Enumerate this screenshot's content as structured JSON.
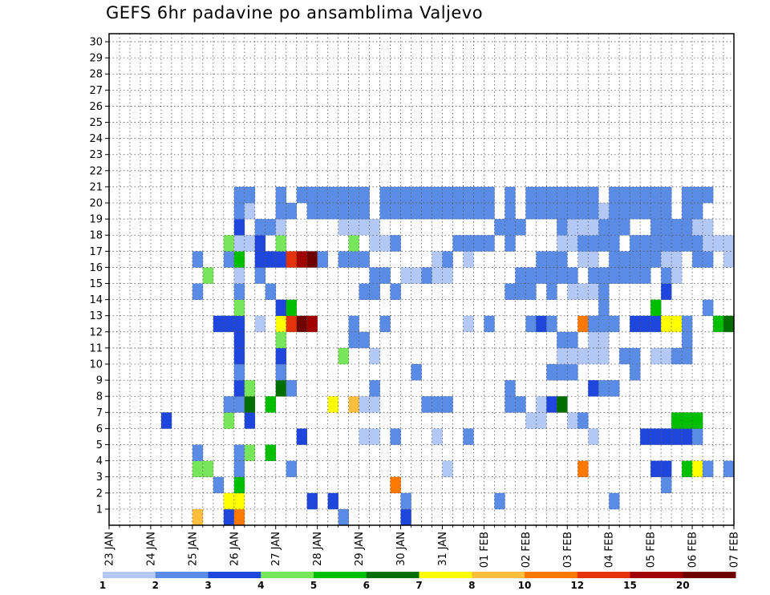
{
  "chart_data": {
    "type": "heatmap",
    "title": "GEFS 6hr padavine po ansamblima Valjevo",
    "xlabel": "",
    "ylabel": "",
    "x_ticks": [
      "23 JAN",
      "24 JAN",
      "25 JAN",
      "26 JAN",
      "27 JAN",
      "28 JAN",
      "29 JAN",
      "30 JAN",
      "31 JAN",
      "01 FEB",
      "02 FEB",
      "03 FEB",
      "04 FEB",
      "05 FEB",
      "06 FEB",
      "07 FEB"
    ],
    "y_ticks": [
      "1",
      "2",
      "3",
      "4",
      "5",
      "6",
      "7",
      "8",
      "9",
      "10",
      "11",
      "12",
      "13",
      "14",
      "15",
      "16",
      "17",
      "18",
      "19",
      "20",
      "21",
      "22",
      "23",
      "24",
      "25",
      "26",
      "27",
      "28",
      "29",
      "30"
    ],
    "members": 30,
    "steps": 60,
    "steps_per_day": 4,
    "grid": true,
    "legend_position": "bottom",
    "legend_labels": [
      "1",
      "2",
      "3",
      "4",
      "5",
      "6",
      "7",
      "8",
      "10",
      "12",
      "15",
      "20"
    ],
    "legend_colors": [
      "#b4c8f5",
      "#5a8ce6",
      "#1e46dc",
      "#78e65a",
      "#00be00",
      "#006e00",
      "#ffff00",
      "#ffbe3c",
      "#ff7800",
      "#e6320a",
      "#a00000",
      "#6e0000"
    ],
    "cells": [
      [
        8,
        0,
        7
      ],
      [
        11,
        0,
        2
      ],
      [
        12,
        0,
        8
      ],
      [
        22,
        0,
        1
      ],
      [
        28,
        0,
        2
      ],
      [
        11,
        1,
        6
      ],
      [
        12,
        1,
        6
      ],
      [
        19,
        1,
        2
      ],
      [
        21,
        1,
        2
      ],
      [
        28,
        1,
        1
      ],
      [
        37,
        1,
        1
      ],
      [
        48,
        1,
        1
      ],
      [
        10,
        2,
        1
      ],
      [
        12,
        2,
        4
      ],
      [
        27,
        2,
        8
      ],
      [
        53,
        2,
        1
      ],
      [
        8,
        3,
        3
      ],
      [
        9,
        3,
        3
      ],
      [
        12,
        3,
        1
      ],
      [
        17,
        3,
        1
      ],
      [
        32,
        3,
        0
      ],
      [
        45,
        3,
        8
      ],
      [
        52,
        3,
        2
      ],
      [
        53,
        3,
        2
      ],
      [
        55,
        3,
        4
      ],
      [
        56,
        3,
        6
      ],
      [
        57,
        3,
        1
      ],
      [
        59,
        3,
        1
      ],
      [
        8,
        4,
        1
      ],
      [
        12,
        4,
        1
      ],
      [
        15,
        4,
        4
      ],
      [
        13,
        4,
        3
      ],
      [
        18,
        5,
        2
      ],
      [
        24,
        5,
        0
      ],
      [
        25,
        5,
        0
      ],
      [
        27,
        5,
        1
      ],
      [
        31,
        5,
        0
      ],
      [
        34,
        5,
        1
      ],
      [
        46,
        5,
        0
      ],
      [
        51,
        5,
        2
      ],
      [
        52,
        5,
        2
      ],
      [
        53,
        5,
        2
      ],
      [
        54,
        5,
        2
      ],
      [
        55,
        5,
        2
      ],
      [
        56,
        5,
        1
      ],
      [
        5,
        6,
        2
      ],
      [
        11,
        6,
        3
      ],
      [
        13,
        6,
        2
      ],
      [
        40,
        6,
        0
      ],
      [
        41,
        6,
        0
      ],
      [
        44,
        6,
        0
      ],
      [
        45,
        6,
        1
      ],
      [
        54,
        6,
        4
      ],
      [
        55,
        6,
        4
      ],
      [
        56,
        6,
        4
      ],
      [
        11,
        7,
        1
      ],
      [
        12,
        7,
        1
      ],
      [
        13,
        7,
        5
      ],
      [
        15,
        7,
        4
      ],
      [
        21,
        7,
        6
      ],
      [
        23,
        7,
        7
      ],
      [
        24,
        7,
        0
      ],
      [
        25,
        7,
        0
      ],
      [
        30,
        7,
        1
      ],
      [
        31,
        7,
        1
      ],
      [
        32,
        7,
        1
      ],
      [
        38,
        7,
        1
      ],
      [
        39,
        7,
        1
      ],
      [
        41,
        7,
        0
      ],
      [
        42,
        7,
        2
      ],
      [
        43,
        7,
        5
      ],
      [
        12,
        8,
        2
      ],
      [
        13,
        8,
        3
      ],
      [
        16,
        8,
        5
      ],
      [
        17,
        8,
        1
      ],
      [
        25,
        8,
        1
      ],
      [
        38,
        8,
        1
      ],
      [
        46,
        8,
        2
      ],
      [
        47,
        8,
        1
      ],
      [
        48,
        8,
        1
      ],
      [
        12,
        9,
        1
      ],
      [
        16,
        9,
        1
      ],
      [
        29,
        9,
        1
      ],
      [
        42,
        9,
        1
      ],
      [
        43,
        9,
        1
      ],
      [
        44,
        9,
        1
      ],
      [
        50,
        9,
        1
      ],
      [
        12,
        10,
        2
      ],
      [
        16,
        10,
        2
      ],
      [
        22,
        10,
        3
      ],
      [
        25,
        10,
        0
      ],
      [
        43,
        10,
        0
      ],
      [
        44,
        10,
        0
      ],
      [
        45,
        10,
        0
      ],
      [
        46,
        10,
        0
      ],
      [
        47,
        10,
        0
      ],
      [
        49,
        10,
        1
      ],
      [
        50,
        10,
        1
      ],
      [
        52,
        10,
        0
      ],
      [
        53,
        10,
        0
      ],
      [
        54,
        10,
        1
      ],
      [
        55,
        10,
        1
      ],
      [
        12,
        11,
        2
      ],
      [
        16,
        11,
        3
      ],
      [
        23,
        11,
        1
      ],
      [
        24,
        11,
        1
      ],
      [
        43,
        11,
        1
      ],
      [
        44,
        11,
        1
      ],
      [
        46,
        11,
        0
      ],
      [
        47,
        11,
        0
      ],
      [
        55,
        11,
        1
      ],
      [
        10,
        12,
        2
      ],
      [
        11,
        12,
        2
      ],
      [
        12,
        12,
        2
      ],
      [
        14,
        12,
        0
      ],
      [
        16,
        12,
        6
      ],
      [
        17,
        12,
        9
      ],
      [
        18,
        12,
        11
      ],
      [
        19,
        12,
        10
      ],
      [
        23,
        12,
        1
      ],
      [
        26,
        12,
        1
      ],
      [
        34,
        12,
        0
      ],
      [
        36,
        12,
        1
      ],
      [
        40,
        12,
        1
      ],
      [
        41,
        12,
        2
      ],
      [
        42,
        12,
        1
      ],
      [
        45,
        12,
        8
      ],
      [
        46,
        12,
        1
      ],
      [
        47,
        12,
        1
      ],
      [
        48,
        12,
        1
      ],
      [
        50,
        12,
        2
      ],
      [
        51,
        12,
        2
      ],
      [
        52,
        12,
        2
      ],
      [
        53,
        12,
        6
      ],
      [
        54,
        12,
        6
      ],
      [
        55,
        12,
        1
      ],
      [
        58,
        12,
        4
      ],
      [
        59,
        12,
        5
      ],
      [
        12,
        13,
        3
      ],
      [
        16,
        13,
        2
      ],
      [
        17,
        13,
        4
      ],
      [
        47,
        13,
        1
      ],
      [
        52,
        13,
        4
      ],
      [
        57,
        13,
        1
      ],
      [
        8,
        14,
        1
      ],
      [
        12,
        14,
        1
      ],
      [
        15,
        14,
        1
      ],
      [
        24,
        14,
        1
      ],
      [
        25,
        14,
        1
      ],
      [
        27,
        14,
        1
      ],
      [
        38,
        14,
        1
      ],
      [
        39,
        14,
        1
      ],
      [
        40,
        14,
        1
      ],
      [
        42,
        14,
        1
      ],
      [
        44,
        14,
        0
      ],
      [
        45,
        14,
        0
      ],
      [
        46,
        14,
        0
      ],
      [
        47,
        14,
        1
      ],
      [
        53,
        14,
        2
      ],
      [
        9,
        15,
        3
      ],
      [
        12,
        15,
        0
      ],
      [
        14,
        15,
        1
      ],
      [
        25,
        15,
        1
      ],
      [
        26,
        15,
        1
      ],
      [
        28,
        15,
        0
      ],
      [
        29,
        15,
        0
      ],
      [
        30,
        15,
        1
      ],
      [
        31,
        15,
        0
      ],
      [
        32,
        15,
        0
      ],
      [
        39,
        15,
        1
      ],
      [
        40,
        15,
        1
      ],
      [
        41,
        15,
        1
      ],
      [
        42,
        15,
        1
      ],
      [
        43,
        15,
        1
      ],
      [
        44,
        15,
        1
      ],
      [
        46,
        15,
        1
      ],
      [
        47,
        15,
        1
      ],
      [
        48,
        15,
        1
      ],
      [
        49,
        15,
        1
      ],
      [
        50,
        15,
        1
      ],
      [
        51,
        15,
        1
      ],
      [
        53,
        15,
        1
      ],
      [
        54,
        15,
        0
      ],
      [
        8,
        16,
        1
      ],
      [
        11,
        16,
        1
      ],
      [
        12,
        16,
        4
      ],
      [
        14,
        16,
        2
      ],
      [
        15,
        16,
        2
      ],
      [
        16,
        16,
        2
      ],
      [
        17,
        16,
        9
      ],
      [
        18,
        16,
        10
      ],
      [
        19,
        16,
        11
      ],
      [
        20,
        16,
        1
      ],
      [
        22,
        16,
        1
      ],
      [
        23,
        16,
        1
      ],
      [
        24,
        16,
        1
      ],
      [
        31,
        16,
        0
      ],
      [
        32,
        16,
        1
      ],
      [
        34,
        16,
        0
      ],
      [
        41,
        16,
        1
      ],
      [
        42,
        16,
        1
      ],
      [
        43,
        16,
        1
      ],
      [
        45,
        16,
        0
      ],
      [
        46,
        16,
        0
      ],
      [
        48,
        16,
        1
      ],
      [
        49,
        16,
        1
      ],
      [
        50,
        16,
        1
      ],
      [
        51,
        16,
        1
      ],
      [
        52,
        16,
        1
      ],
      [
        53,
        16,
        0
      ],
      [
        54,
        16,
        0
      ],
      [
        56,
        16,
        1
      ],
      [
        57,
        16,
        1
      ],
      [
        59,
        16,
        0
      ],
      [
        11,
        17,
        3
      ],
      [
        12,
        17,
        0
      ],
      [
        13,
        17,
        0
      ],
      [
        14,
        17,
        2
      ],
      [
        16,
        17,
        3
      ],
      [
        23,
        17,
        3
      ],
      [
        25,
        17,
        0
      ],
      [
        26,
        17,
        0
      ],
      [
        27,
        17,
        1
      ],
      [
        33,
        17,
        1
      ],
      [
        34,
        17,
        1
      ],
      [
        35,
        17,
        1
      ],
      [
        36,
        17,
        1
      ],
      [
        38,
        17,
        1
      ],
      [
        43,
        17,
        0
      ],
      [
        44,
        17,
        0
      ],
      [
        45,
        17,
        1
      ],
      [
        46,
        17,
        1
      ],
      [
        47,
        17,
        1
      ],
      [
        48,
        17,
        1
      ],
      [
        50,
        17,
        1
      ],
      [
        51,
        17,
        1
      ],
      [
        52,
        17,
        1
      ],
      [
        53,
        17,
        1
      ],
      [
        54,
        17,
        1
      ],
      [
        55,
        17,
        1
      ],
      [
        56,
        17,
        1
      ],
      [
        57,
        17,
        0
      ],
      [
        58,
        17,
        0
      ],
      [
        59,
        17,
        0
      ],
      [
        12,
        18,
        2
      ],
      [
        14,
        18,
        1
      ],
      [
        15,
        18,
        1
      ],
      [
        16,
        18,
        0
      ],
      [
        22,
        18,
        0
      ],
      [
        23,
        18,
        0
      ],
      [
        24,
        18,
        0
      ],
      [
        25,
        18,
        0
      ],
      [
        37,
        18,
        1
      ],
      [
        38,
        18,
        1
      ],
      [
        39,
        18,
        1
      ],
      [
        43,
        18,
        1
      ],
      [
        44,
        18,
        0
      ],
      [
        45,
        18,
        0
      ],
      [
        46,
        18,
        0
      ],
      [
        47,
        18,
        1
      ],
      [
        48,
        18,
        1
      ],
      [
        49,
        18,
        1
      ],
      [
        52,
        18,
        1
      ],
      [
        53,
        18,
        1
      ],
      [
        54,
        18,
        1
      ],
      [
        55,
        18,
        1
      ],
      [
        56,
        18,
        0
      ],
      [
        57,
        18,
        0
      ],
      [
        12,
        19,
        1
      ],
      [
        13,
        19,
        0
      ],
      [
        16,
        19,
        1
      ],
      [
        17,
        19,
        1
      ],
      [
        19,
        19,
        1
      ],
      [
        20,
        19,
        1
      ],
      [
        21,
        19,
        1
      ],
      [
        22,
        19,
        1
      ],
      [
        23,
        19,
        1
      ],
      [
        24,
        19,
        1
      ],
      [
        26,
        19,
        1
      ],
      [
        27,
        19,
        1
      ],
      [
        28,
        19,
        1
      ],
      [
        29,
        19,
        1
      ],
      [
        30,
        19,
        1
      ],
      [
        31,
        19,
        1
      ],
      [
        32,
        19,
        1
      ],
      [
        33,
        19,
        1
      ],
      [
        34,
        19,
        1
      ],
      [
        35,
        19,
        1
      ],
      [
        36,
        19,
        1
      ],
      [
        38,
        19,
        1
      ],
      [
        40,
        19,
        1
      ],
      [
        41,
        19,
        1
      ],
      [
        42,
        19,
        1
      ],
      [
        43,
        19,
        1
      ],
      [
        44,
        19,
        1
      ],
      [
        45,
        19,
        1
      ],
      [
        46,
        19,
        1
      ],
      [
        47,
        19,
        0
      ],
      [
        48,
        19,
        1
      ],
      [
        49,
        19,
        1
      ],
      [
        50,
        19,
        1
      ],
      [
        51,
        19,
        1
      ],
      [
        52,
        19,
        1
      ],
      [
        53,
        19,
        1
      ],
      [
        55,
        19,
        1
      ],
      [
        56,
        19,
        1
      ],
      [
        12,
        20,
        1
      ],
      [
        13,
        20,
        1
      ],
      [
        16,
        20,
        1
      ],
      [
        18,
        20,
        1
      ],
      [
        19,
        20,
        1
      ],
      [
        20,
        20,
        1
      ],
      [
        21,
        20,
        1
      ],
      [
        22,
        20,
        1
      ],
      [
        23,
        20,
        1
      ],
      [
        24,
        20,
        1
      ],
      [
        26,
        20,
        1
      ],
      [
        27,
        20,
        1
      ],
      [
        28,
        20,
        1
      ],
      [
        29,
        20,
        1
      ],
      [
        30,
        20,
        1
      ],
      [
        31,
        20,
        1
      ],
      [
        32,
        20,
        1
      ],
      [
        33,
        20,
        1
      ],
      [
        34,
        20,
        1
      ],
      [
        35,
        20,
        1
      ],
      [
        36,
        20,
        1
      ],
      [
        38,
        20,
        1
      ],
      [
        40,
        20,
        1
      ],
      [
        41,
        20,
        1
      ],
      [
        42,
        20,
        1
      ],
      [
        43,
        20,
        1
      ],
      [
        44,
        20,
        1
      ],
      [
        45,
        20,
        1
      ],
      [
        46,
        20,
        1
      ],
      [
        48,
        20,
        1
      ],
      [
        49,
        20,
        1
      ],
      [
        50,
        20,
        1
      ],
      [
        51,
        20,
        1
      ],
      [
        52,
        20,
        1
      ],
      [
        53,
        20,
        1
      ],
      [
        55,
        20,
        1
      ],
      [
        56,
        20,
        1
      ],
      [
        57,
        20,
        1
      ]
    ]
  }
}
